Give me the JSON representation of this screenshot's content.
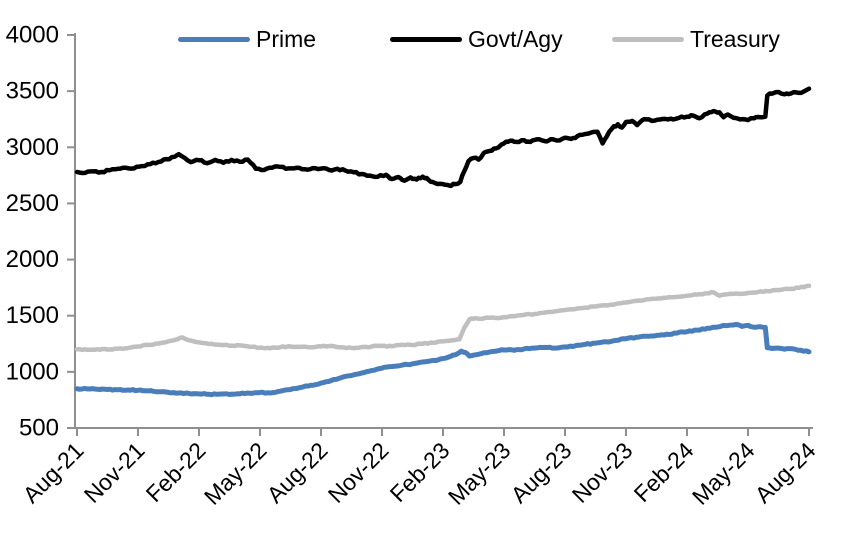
{
  "chart_data": {
    "type": "line",
    "title": "",
    "x_axis": {
      "month_span": 36,
      "ticks": [
        {
          "label": "Aug-21",
          "month": 0
        },
        {
          "label": "Nov-21",
          "month": 3
        },
        {
          "label": "Feb-22",
          "month": 6
        },
        {
          "label": "May-22",
          "month": 9
        },
        {
          "label": "Aug-22",
          "month": 12
        },
        {
          "label": "Nov-22",
          "month": 15
        },
        {
          "label": "Feb-23",
          "month": 18
        },
        {
          "label": "May-23",
          "month": 21
        },
        {
          "label": "Aug-23",
          "month": 24
        },
        {
          "label": "Nov-23",
          "month": 27
        },
        {
          "label": "Feb-24",
          "month": 30
        },
        {
          "label": "May-24",
          "month": 33
        },
        {
          "label": "Aug-24",
          "month": 36
        }
      ]
    },
    "y_axis": {
      "min": 500,
      "max": 4000,
      "step": 500,
      "tick_labels": [
        "500",
        "1000",
        "1500",
        "2000",
        "2500",
        "3000",
        "3500",
        "4000"
      ]
    },
    "legend": [
      {
        "name": "Prime",
        "color": "#4a7ebb"
      },
      {
        "name": "Govt/Agy",
        "color": "#000000"
      },
      {
        "name": "Treasury",
        "color": "#bfbfbf"
      }
    ],
    "series": [
      {
        "name": "Prime",
        "color": "#4a7ebb",
        "stroke_width": 5,
        "noise": 5,
        "points": [
          [
            0,
            850
          ],
          [
            0.5,
            848
          ],
          [
            1,
            845
          ],
          [
            1.5,
            843
          ],
          [
            2,
            840
          ],
          [
            2.5,
            838
          ],
          [
            3,
            836
          ],
          [
            3.5,
            830
          ],
          [
            4,
            823
          ],
          [
            4.5,
            817
          ],
          [
            5,
            812
          ],
          [
            5.5,
            808
          ],
          [
            6,
            804
          ],
          [
            6.5,
            800
          ],
          [
            7,
            802
          ],
          [
            7.5,
            798
          ],
          [
            8,
            804
          ],
          [
            8.5,
            810
          ],
          [
            9,
            816
          ],
          [
            9.5,
            812
          ],
          [
            10,
            828
          ],
          [
            10.5,
            843
          ],
          [
            11,
            862
          ],
          [
            11.5,
            880
          ],
          [
            12,
            900
          ],
          [
            12.5,
            923
          ],
          [
            13,
            948
          ],
          [
            13.5,
            968
          ],
          [
            14,
            990
          ],
          [
            14.5,
            1012
          ],
          [
            15,
            1033
          ],
          [
            15.5,
            1048
          ],
          [
            16,
            1060
          ],
          [
            16.5,
            1072
          ],
          [
            17,
            1088
          ],
          [
            17.5,
            1102
          ],
          [
            18,
            1118
          ],
          [
            18.4,
            1140
          ],
          [
            18.7,
            1160
          ],
          [
            18.9,
            1185
          ],
          [
            19.1,
            1172
          ],
          [
            19.3,
            1140
          ],
          [
            19.6,
            1152
          ],
          [
            20,
            1170
          ],
          [
            20.5,
            1182
          ],
          [
            21,
            1195
          ],
          [
            21.5,
            1192
          ],
          [
            22,
            1205
          ],
          [
            22.5,
            1212
          ],
          [
            23,
            1218
          ],
          [
            23.5,
            1212
          ],
          [
            24,
            1222
          ],
          [
            24.5,
            1232
          ],
          [
            25,
            1245
          ],
          [
            25.5,
            1255
          ],
          [
            26,
            1268
          ],
          [
            26.5,
            1280
          ],
          [
            27,
            1295
          ],
          [
            27.5,
            1308
          ],
          [
            28,
            1318
          ],
          [
            28.5,
            1325
          ],
          [
            29,
            1335
          ],
          [
            29.5,
            1345
          ],
          [
            30,
            1358
          ],
          [
            30.5,
            1372
          ],
          [
            31,
            1388
          ],
          [
            31.4,
            1398
          ],
          [
            31.7,
            1408
          ],
          [
            32,
            1412
          ],
          [
            32.4,
            1422
          ],
          [
            32.7,
            1405
          ],
          [
            33,
            1415
          ],
          [
            33.3,
            1398
          ],
          [
            33.6,
            1402
          ],
          [
            33.85,
            1396
          ],
          [
            33.95,
            1215
          ],
          [
            34.2,
            1208
          ],
          [
            34.5,
            1212
          ],
          [
            34.8,
            1202
          ],
          [
            35.2,
            1205
          ],
          [
            35.6,
            1192
          ],
          [
            36,
            1178
          ]
        ]
      },
      {
        "name": "Govt/Agy",
        "color": "#000000",
        "stroke_width": 4.5,
        "noise": 9,
        "points": [
          [
            0,
            2780
          ],
          [
            0.4,
            2772
          ],
          [
            0.8,
            2785
          ],
          [
            1.2,
            2780
          ],
          [
            1.6,
            2795
          ],
          [
            2,
            2808
          ],
          [
            2.4,
            2818
          ],
          [
            2.8,
            2812
          ],
          [
            3.2,
            2832
          ],
          [
            3.6,
            2850
          ],
          [
            4,
            2868
          ],
          [
            4.4,
            2895
          ],
          [
            4.8,
            2915
          ],
          [
            5,
            2938
          ],
          [
            5.3,
            2905
          ],
          [
            5.6,
            2868
          ],
          [
            6,
            2885
          ],
          [
            6.4,
            2858
          ],
          [
            6.8,
            2888
          ],
          [
            7.2,
            2862
          ],
          [
            7.6,
            2888
          ],
          [
            8,
            2872
          ],
          [
            8.4,
            2890
          ],
          [
            8.8,
            2808
          ],
          [
            9.2,
            2798
          ],
          [
            9.6,
            2818
          ],
          [
            10,
            2825
          ],
          [
            10.4,
            2812
          ],
          [
            10.8,
            2818
          ],
          [
            11.2,
            2805
          ],
          [
            11.6,
            2815
          ],
          [
            12,
            2810
          ],
          [
            12.4,
            2798
          ],
          [
            12.8,
            2808
          ],
          [
            13.2,
            2792
          ],
          [
            13.6,
            2778
          ],
          [
            14,
            2762
          ],
          [
            14.4,
            2748
          ],
          [
            14.8,
            2738
          ],
          [
            15.2,
            2755
          ],
          [
            15.5,
            2718
          ],
          [
            15.8,
            2735
          ],
          [
            16.1,
            2702
          ],
          [
            16.4,
            2732
          ],
          [
            16.7,
            2712
          ],
          [
            17,
            2738
          ],
          [
            17.3,
            2708
          ],
          [
            17.6,
            2682
          ],
          [
            18,
            2672
          ],
          [
            18.3,
            2660
          ],
          [
            18.6,
            2672
          ],
          [
            18.85,
            2692
          ],
          [
            19.05,
            2790
          ],
          [
            19.25,
            2875
          ],
          [
            19.5,
            2905
          ],
          [
            19.75,
            2890
          ],
          [
            20,
            2948
          ],
          [
            20.3,
            2968
          ],
          [
            20.6,
            2990
          ],
          [
            21,
            3035
          ],
          [
            21.3,
            3058
          ],
          [
            21.6,
            3048
          ],
          [
            22,
            3062
          ],
          [
            22.3,
            3048
          ],
          [
            22.6,
            3070
          ],
          [
            23,
            3055
          ],
          [
            23.3,
            3072
          ],
          [
            23.6,
            3060
          ],
          [
            24,
            3085
          ],
          [
            24.3,
            3075
          ],
          [
            24.6,
            3098
          ],
          [
            25,
            3118
          ],
          [
            25.3,
            3132
          ],
          [
            25.6,
            3138
          ],
          [
            25.85,
            3035
          ],
          [
            26.05,
            3095
          ],
          [
            26.3,
            3165
          ],
          [
            26.6,
            3205
          ],
          [
            26.8,
            3175
          ],
          [
            27,
            3225
          ],
          [
            27.3,
            3235
          ],
          [
            27.55,
            3198
          ],
          [
            27.8,
            3242
          ],
          [
            28,
            3248
          ],
          [
            28.4,
            3238
          ],
          [
            28.8,
            3252
          ],
          [
            29.2,
            3255
          ],
          [
            29.6,
            3262
          ],
          [
            30,
            3272
          ],
          [
            30.3,
            3282
          ],
          [
            30.6,
            3258
          ],
          [
            31,
            3300
          ],
          [
            31.3,
            3322
          ],
          [
            31.6,
            3312
          ],
          [
            31.8,
            3268
          ],
          [
            32,
            3292
          ],
          [
            32.3,
            3262
          ],
          [
            32.6,
            3248
          ],
          [
            33,
            3242
          ],
          [
            33.3,
            3258
          ],
          [
            33.6,
            3268
          ],
          [
            33.85,
            3272
          ],
          [
            33.95,
            3462
          ],
          [
            34.2,
            3478
          ],
          [
            34.5,
            3492
          ],
          [
            34.8,
            3472
          ],
          [
            35.1,
            3478
          ],
          [
            35.4,
            3488
          ],
          [
            35.7,
            3492
          ],
          [
            36,
            3522
          ]
        ]
      },
      {
        "name": "Treasury",
        "color": "#bfbfbf",
        "stroke_width": 4.5,
        "noise": 5,
        "points": [
          [
            0,
            1200
          ],
          [
            0.5,
            1196
          ],
          [
            1,
            1202
          ],
          [
            1.5,
            1198
          ],
          [
            2,
            1206
          ],
          [
            2.5,
            1212
          ],
          [
            3,
            1226
          ],
          [
            3.5,
            1240
          ],
          [
            4,
            1252
          ],
          [
            4.5,
            1272
          ],
          [
            5,
            1296
          ],
          [
            5.2,
            1306
          ],
          [
            5.5,
            1282
          ],
          [
            6,
            1262
          ],
          [
            6.5,
            1248
          ],
          [
            7,
            1242
          ],
          [
            7.5,
            1232
          ],
          [
            8,
            1236
          ],
          [
            8.5,
            1222
          ],
          [
            9,
            1216
          ],
          [
            9.5,
            1210
          ],
          [
            10,
            1220
          ],
          [
            10.5,
            1226
          ],
          [
            11,
            1222
          ],
          [
            11.5,
            1218
          ],
          [
            12,
            1226
          ],
          [
            12.5,
            1231
          ],
          [
            13,
            1219
          ],
          [
            13.5,
            1213
          ],
          [
            14,
            1221
          ],
          [
            14.5,
            1226
          ],
          [
            15,
            1231
          ],
          [
            15.5,
            1228
          ],
          [
            16,
            1241
          ],
          [
            16.5,
            1238
          ],
          [
            17,
            1251
          ],
          [
            17.5,
            1259
          ],
          [
            18,
            1271
          ],
          [
            18.4,
            1280
          ],
          [
            18.8,
            1290
          ],
          [
            19.05,
            1395
          ],
          [
            19.3,
            1468
          ],
          [
            19.6,
            1478
          ],
          [
            19.9,
            1472
          ],
          [
            20.3,
            1482
          ],
          [
            20.7,
            1478
          ],
          [
            21,
            1488
          ],
          [
            21.5,
            1495
          ],
          [
            22,
            1508
          ],
          [
            22.5,
            1515
          ],
          [
            23,
            1528
          ],
          [
            23.5,
            1538
          ],
          [
            24,
            1550
          ],
          [
            24.5,
            1560
          ],
          [
            25,
            1572
          ],
          [
            25.5,
            1582
          ],
          [
            26,
            1592
          ],
          [
            26.5,
            1605
          ],
          [
            27,
            1618
          ],
          [
            27.5,
            1632
          ],
          [
            28,
            1645
          ],
          [
            28.5,
            1652
          ],
          [
            29,
            1660
          ],
          [
            29.5,
            1668
          ],
          [
            30,
            1678
          ],
          [
            30.5,
            1688
          ],
          [
            31,
            1700
          ],
          [
            31.3,
            1708
          ],
          [
            31.6,
            1678
          ],
          [
            32,
            1692
          ],
          [
            32.5,
            1697
          ],
          [
            33,
            1702
          ],
          [
            33.5,
            1712
          ],
          [
            34,
            1718
          ],
          [
            34.5,
            1728
          ],
          [
            35,
            1738
          ],
          [
            35.5,
            1748
          ],
          [
            36,
            1766
          ]
        ]
      }
    ],
    "grid": false,
    "legend_position": "top",
    "plot_background": "#ffffff"
  },
  "colors": {
    "axis": "#8f8f8f",
    "tick_text": "#000000",
    "background": "#ffffff"
  }
}
